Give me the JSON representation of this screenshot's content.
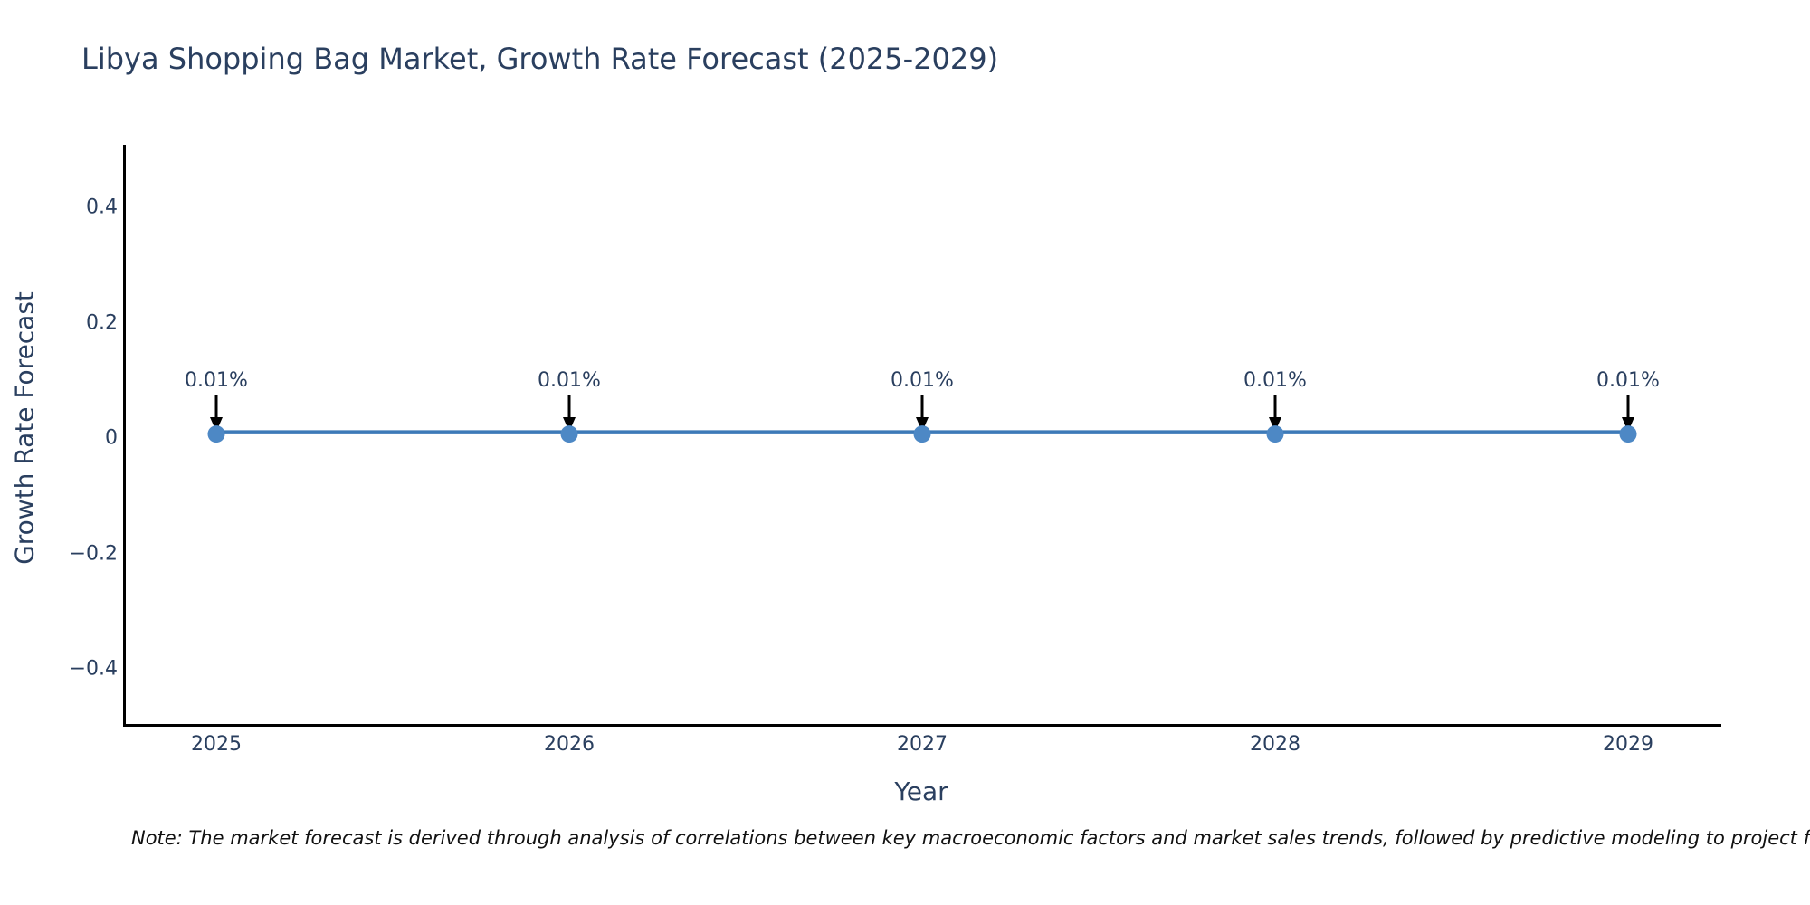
{
  "title": "Libya Shopping Bag Market, Growth Rate Forecast (2025-2029)",
  "x_axis": {
    "label": "Year",
    "ticks": [
      "2025",
      "2026",
      "2027",
      "2028",
      "2029"
    ]
  },
  "y_axis": {
    "label": "Growth Rate Forecast",
    "ticks": [
      "0.4",
      "0.2",
      "0",
      "−0.2",
      "−0.4"
    ],
    "tick_values": [
      0.4,
      0.2,
      0,
      -0.2,
      -0.4
    ]
  },
  "note": "Note: The market forecast is derived through analysis of correlations between key macroeconomic factors and market sales trends, followed by predictive modeling to project future sales",
  "colors": {
    "line": "#3d7ab8",
    "marker": "#4d88c5",
    "arrow": "#000000",
    "axis_line": "#000000",
    "heading_text": "#2a3f5f",
    "note_text": "#111111",
    "background": "#ffffff"
  },
  "chart_data": {
    "type": "line",
    "x": [
      2025,
      2026,
      2027,
      2028,
      2029
    ],
    "series": [
      {
        "name": "Growth Rate Forecast",
        "values": [
          0.01,
          0.01,
          0.01,
          0.01,
          0.01
        ]
      }
    ],
    "annotations": [
      "0.01%",
      "0.01%",
      "0.01%",
      "0.01%",
      "0.01%"
    ],
    "title": "Libya Shopping Bag Market, Growth Rate Forecast (2025-2029)",
    "xlabel": "Year",
    "ylabel": "Growth Rate Forecast",
    "ylim": [
      -0.5,
      0.5
    ],
    "xticks": [
      2025,
      2026,
      2027,
      2028,
      2029
    ],
    "yticks": [
      0.4,
      0.2,
      0,
      -0.2,
      -0.4
    ],
    "grid": false,
    "legend": false,
    "marker_style": "circle",
    "annotation_arrow": "down"
  }
}
